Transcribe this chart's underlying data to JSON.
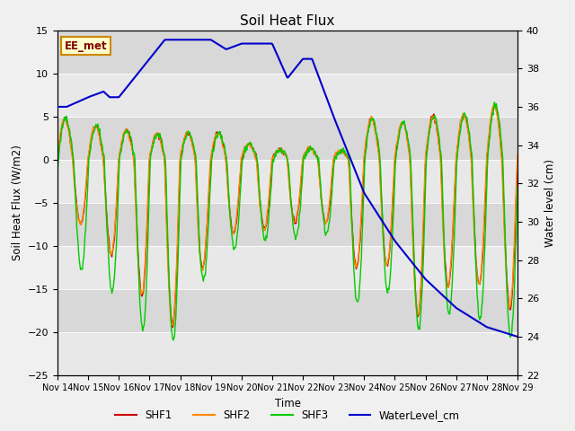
{
  "title": "Soil Heat Flux",
  "ylabel_left": "Soil Heat Flux (W/m2)",
  "ylabel_right": "Water level (cm)",
  "xlabel": "Time",
  "ylim_left": [
    -25,
    15
  ],
  "ylim_right": [
    22,
    40
  ],
  "legend_label": "EE_met",
  "xtick_labels": [
    "Nov 14",
    "Nov 15",
    "Nov 16",
    "Nov 17",
    "Nov 18",
    "Nov 19",
    "Nov 20",
    "Nov 21",
    "Nov 22",
    "Nov 23",
    "Nov 24",
    "Nov 25",
    "Nov 26",
    "Nov 27",
    "Nov 28",
    "Nov 29"
  ],
  "yticks_left": [
    -25,
    -20,
    -15,
    -10,
    -5,
    0,
    5,
    10,
    15
  ],
  "yticks_right": [
    22,
    24,
    26,
    28,
    30,
    32,
    34,
    36,
    38,
    40
  ],
  "band_colors": [
    "#e8e8e8",
    "#d8d8d8"
  ],
  "series_colors": {
    "SHF1": "#cc0000",
    "SHF2": "#ff8800",
    "SHF3": "#00cc00",
    "WaterLevel": "#0000cc"
  },
  "fig_facecolor": "#f0f0f0"
}
